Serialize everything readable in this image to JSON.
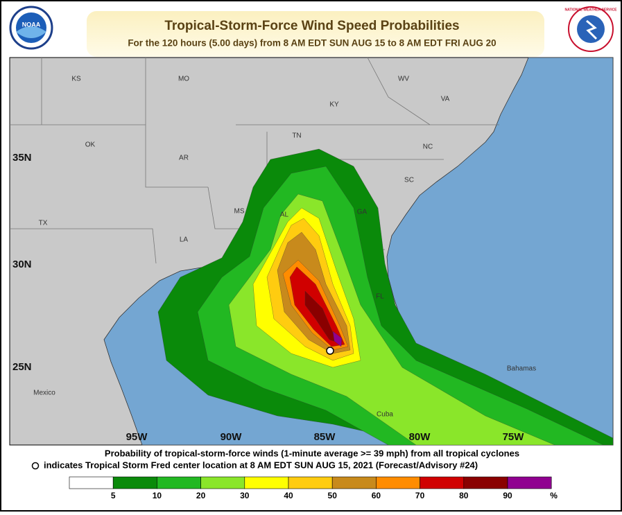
{
  "header": {
    "title": "Tropical-Storm-Force Wind Speed Probabilities",
    "subtitle": "For the 120 hours (5.00 days) from 8 AM EDT SUN AUG 15 to 8 AM EDT FRI AUG 20",
    "left_logo": "NOAA",
    "right_logo": "NATIONAL WEATHER SERVICE"
  },
  "map": {
    "lat_labels": [
      "35N",
      "30N",
      "25N"
    ],
    "lon_labels": [
      "95W",
      "90W",
      "85W",
      "80W",
      "75W"
    ],
    "region_labels": [
      "KS",
      "MO",
      "WV",
      "KY",
      "VA",
      "OK",
      "TN",
      "NC",
      "AR",
      "SC",
      "TX",
      "MS",
      "AL",
      "GA",
      "LA",
      "FL",
      "Mexico",
      "Cuba",
      "Bahamas"
    ]
  },
  "footer": {
    "lines": [
      "Probability of tropical-storm-force winds (1-minute average >= 39 mph) from all tropical cyclones",
      "indicates Tropical Storm Fred center location at 8 AM EDT SUN AUG 15, 2021 (Forecast/Advisory #24)"
    ]
  },
  "legend": {
    "ticks": [
      5,
      10,
      20,
      30,
      40,
      50,
      60,
      70,
      80,
      90
    ],
    "unit": "%",
    "colors": [
      "#ffffff",
      "#0a8a0a",
      "#22b822",
      "#8ae62a",
      "#ffff00",
      "#ffcc10",
      "#c88a1c",
      "#ff8c00",
      "#d00000",
      "#8a0000",
      "#900090"
    ]
  }
}
